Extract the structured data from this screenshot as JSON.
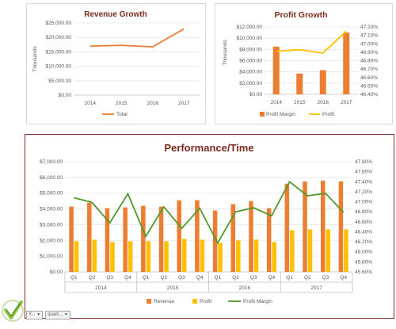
{
  "chart_data": [
    {
      "type": "line",
      "title": "Revenue Growth",
      "ylabel": "Thousands",
      "categories": [
        "2014",
        "2015",
        "2016",
        "2017"
      ],
      "series": [
        {
          "name": "Total",
          "values": [
            16950,
            17280,
            16720,
            22950
          ],
          "color": "#ed7d31"
        }
      ],
      "ylim": [
        0,
        25000
      ],
      "yticks": [
        "$0.00",
        "$5,000.00",
        "$10,000.00",
        "$15,000.00",
        "$20,000.00",
        "$25,000.00"
      ],
      "legend": "bottom",
      "grid": true
    },
    {
      "type": "bar",
      "title": "Profit Growth",
      "ylabel": "Thousands",
      "categories": [
        "2014",
        "2015",
        "2016",
        "2017"
      ],
      "series": [
        {
          "name": "Profit Margin",
          "type": "bar",
          "axis": "left",
          "values": [
            8500,
            3700,
            4300,
            11000
          ],
          "color": "#ed7d31"
        },
        {
          "name": "Profit",
          "type": "line",
          "axis": "right",
          "values": [
            46.91,
            46.93,
            46.89,
            47.15
          ],
          "color": "#ffc000"
        }
      ],
      "ylim": [
        0,
        12000
      ],
      "y2lim": [
        46.4,
        47.2
      ],
      "yticks": [
        "$0.00",
        "$2,000.00",
        "$4,000.00",
        "$6,000.00",
        "$8,000.00",
        "$10,000.00",
        "$12,000.00"
      ],
      "y2ticks": [
        "46.40%",
        "46.50%",
        "46.60%",
        "46.70%",
        "46.80%",
        "46.90%",
        "47.00%",
        "47.10%",
        "47.20%"
      ],
      "legend": "bottom",
      "grid": true
    },
    {
      "type": "bar",
      "title": "Performance/Time",
      "categories": [
        "Q1",
        "Q2",
        "Q3",
        "Q4",
        "Q1",
        "Q2",
        "Q3",
        "Q4",
        "Q1",
        "Q2",
        "Q3",
        "Q4",
        "Q1",
        "Q2",
        "Q3",
        "Q4"
      ],
      "groups": [
        "2014",
        "2015",
        "2016",
        "2017"
      ],
      "series": [
        {
          "name": "Revenue",
          "type": "bar",
          "axis": "left",
          "color": "#ed7d31",
          "values": [
            4150,
            4400,
            4050,
            4100,
            4200,
            4150,
            4550,
            4550,
            3900,
            4300,
            4500,
            4050,
            5600,
            5750,
            5800,
            5750
          ]
        },
        {
          "name": "Profit",
          "type": "bar",
          "axis": "left",
          "color": "#ffc000",
          "values": [
            1950,
            2050,
            1900,
            1950,
            1950,
            1950,
            2100,
            2050,
            1850,
            2000,
            2050,
            1900,
            2650,
            2700,
            2700,
            2700
          ]
        },
        {
          "name": "Profit Margin",
          "type": "line",
          "axis": "right",
          "color": "#4f9a2b",
          "values": [
            47.08,
            46.99,
            46.58,
            47.16,
            46.31,
            46.9,
            46.47,
            46.87,
            46.18,
            46.8,
            46.88,
            46.72,
            47.4,
            47.12,
            47.17,
            46.79
          ]
        }
      ],
      "ylim": [
        0,
        7000
      ],
      "y2lim": [
        45.6,
        47.8
      ],
      "yticks": [
        "$0.00",
        "$1,000.00",
        "$2,000.00",
        "$3,000.00",
        "$4,000.00",
        "$5,000.00",
        "$6,000.00",
        "$7,000.00"
      ],
      "y2ticks": [
        "45.60%",
        "45.80%",
        "46.00%",
        "46.20%",
        "46.40%",
        "46.60%",
        "46.80%",
        "47.00%",
        "47.20%",
        "47.40%",
        "47.60%",
        "47.80%"
      ],
      "legend": "bottom",
      "grid": true
    }
  ],
  "filters": [
    {
      "label": "Y...",
      "icon": "dropdown-arrow-icon"
    },
    {
      "label": "quart...",
      "icon": "dropdown-arrow-icon"
    }
  ],
  "logo": {
    "icon": "check-mark-logo-icon",
    "colors": [
      "#8dc63f",
      "#5a8f2a"
    ]
  }
}
